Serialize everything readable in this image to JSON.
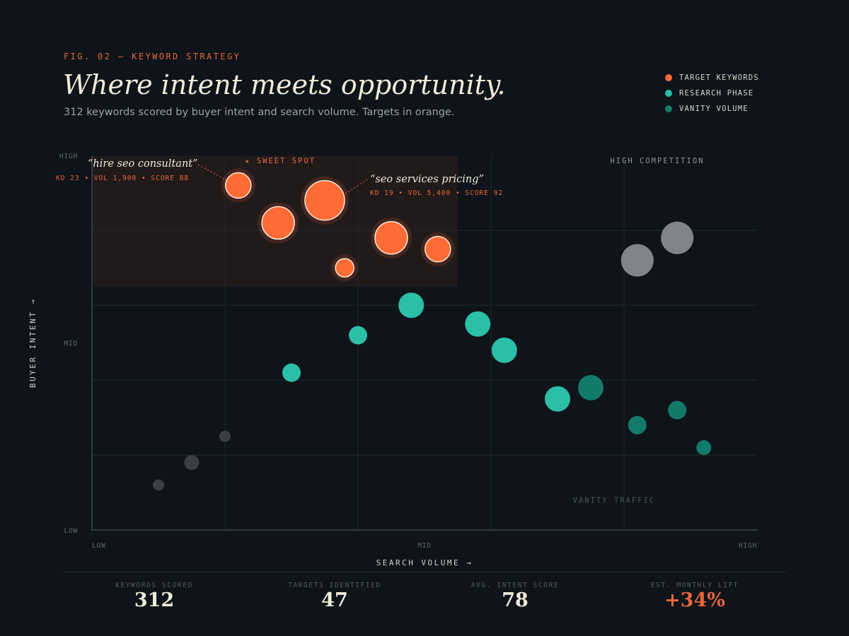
{
  "header": {
    "fig_label": "FIG. 02 — KEYWORD STRATEGY",
    "title": "Where intent meets opportunity.",
    "subtitle": "312 keywords scored by buyer intent and search volume. Targets in orange."
  },
  "legend": [
    {
      "label": "TARGET KEYWORDS",
      "color": "#ff6b35"
    },
    {
      "label": "RESEARCH PHASE",
      "color": "#2bbfa7"
    },
    {
      "label": "VANITY VOLUME",
      "color": "#137a6a"
    }
  ],
  "chart_data": {
    "type": "scatter",
    "xlabel": "SEARCH VOLUME →",
    "ylabel": "BUYER INTENT →",
    "xlim": [
      0,
      100
    ],
    "ylim": [
      0,
      100
    ],
    "x_ticks": [
      {
        "value": 0,
        "label": "LOW"
      },
      {
        "value": 50,
        "label": "MID"
      },
      {
        "value": 100,
        "label": "HIGH"
      }
    ],
    "y_ticks": [
      {
        "value": 100,
        "label": "HIGH"
      },
      {
        "value": 50,
        "label": "MID"
      },
      {
        "value": 0,
        "label": "LOW"
      }
    ],
    "grid": true,
    "regions": [
      {
        "label": "★ SWEET SPOT",
        "x": [
          0,
          55
        ],
        "y": [
          65,
          100
        ]
      },
      {
        "label": "HIGH COMPETITION",
        "x": [
          70,
          100
        ],
        "y": [
          100,
          100
        ]
      },
      {
        "label": "VANITY TRAFFIC",
        "x": [
          70,
          90
        ],
        "y": [
          8,
          8
        ]
      }
    ],
    "series": [
      {
        "name": "TARGET KEYWORDS",
        "style": "target",
        "color": "#ff6b35",
        "points": [
          {
            "x": 22,
            "y": 92,
            "size": 2
          },
          {
            "x": 28,
            "y": 82,
            "size": 3
          },
          {
            "x": 35,
            "y": 88,
            "size": 4
          },
          {
            "x": 38,
            "y": 70,
            "size": 1
          },
          {
            "x": 45,
            "y": 78,
            "size": 3
          },
          {
            "x": 52,
            "y": 75,
            "size": 2
          }
        ]
      },
      {
        "name": "RESEARCH PHASE",
        "style": "plain",
        "color": "#2bbfa7",
        "points": [
          {
            "x": 30,
            "y": 42,
            "size": 1
          },
          {
            "x": 40,
            "y": 52,
            "size": 1
          },
          {
            "x": 48,
            "y": 60,
            "size": 2
          },
          {
            "x": 58,
            "y": 55,
            "size": 2
          },
          {
            "x": 62,
            "y": 48,
            "size": 2
          },
          {
            "x": 70,
            "y": 35,
            "size": 2
          }
        ]
      },
      {
        "name": "VANITY VOLUME",
        "style": "plain",
        "color": "#137a6a",
        "points": [
          {
            "x": 75,
            "y": 38,
            "size": 2
          },
          {
            "x": 82,
            "y": 28,
            "size": 1
          },
          {
            "x": 88,
            "y": 32,
            "size": 1
          },
          {
            "x": 92,
            "y": 22,
            "size": 0.5
          }
        ]
      },
      {
        "style": "plain",
        "color": "#80858c",
        "points": [
          {
            "x": 82,
            "y": 72,
            "size": 3
          },
          {
            "x": 88,
            "y": 78,
            "size": 3
          }
        ]
      },
      {
        "style": "plain",
        "color": "#3a3f44",
        "points": [
          {
            "x": 10,
            "y": 12,
            "size": 0
          },
          {
            "x": 15,
            "y": 18,
            "size": 0.5
          },
          {
            "x": 20,
            "y": 25,
            "size": 0
          }
        ]
      }
    ],
    "annotations": [
      {
        "keyword": "“hire seo consultant”",
        "stats": "KD 23 • VOL 1,900 • SCORE 88",
        "point_x": 22,
        "point_y": 92
      },
      {
        "keyword": "“seo services pricing”",
        "stats": "KD 19 • VOL 5,400 • SCORE 92",
        "point_x": 35,
        "point_y": 88
      }
    ]
  },
  "stats": [
    {
      "label": "KEYWORDS SCORED",
      "value": "312",
      "accent": false
    },
    {
      "label": "TARGETS IDENTIFIED",
      "value": "47",
      "accent": false
    },
    {
      "label": "AVG. INTENT SCORE",
      "value": "78",
      "accent": false
    },
    {
      "label": "EST. MONTHLY LIFT",
      "value": "+34%",
      "accent": true
    }
  ]
}
